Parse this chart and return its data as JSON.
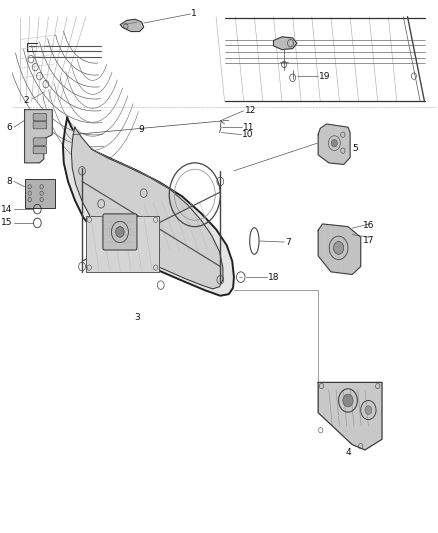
{
  "background_color": "#ffffff",
  "fig_width": 4.38,
  "fig_height": 5.33,
  "dpi": 100,
  "label_fontsize": 6.5,
  "label_color": "#111111",
  "line_color": "#333333",
  "fill_light": "#e0e0e0",
  "fill_mid": "#c8c8c8",
  "fill_dark": "#aaaaaa"
}
